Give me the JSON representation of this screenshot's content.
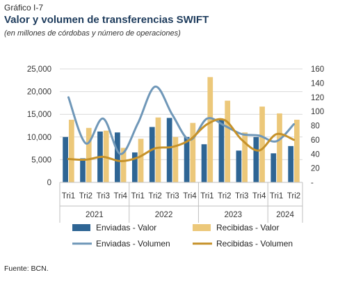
{
  "header": {
    "label": "Gráfico I-7",
    "title": "Valor y volumen de transferencias SWIFT",
    "subtitle": "(en millones de córdobas y número de operaciones)"
  },
  "footer": {
    "source": "Fuente: BCN."
  },
  "colors": {
    "enviadas_valor": "#2e6594",
    "recibidas_valor": "#ecc87a",
    "enviadas_volumen": "#6f97b8",
    "recibidas_volumen": "#c6922a",
    "grid": "#d9d9d9",
    "axis_text": "#333333"
  },
  "chart_data": {
    "type": "bar",
    "combo": "bar-line",
    "categories": [
      "Tri1",
      "Tri2",
      "Tri3",
      "Tri4",
      "Tri1",
      "Tri2",
      "Tri3",
      "Tri4",
      "Tri1",
      "Tri2",
      "Tri3",
      "Tri4",
      "Tri1",
      "Tri2"
    ],
    "groups": [
      {
        "label": "2021",
        "span": 4
      },
      {
        "label": "2022",
        "span": 4
      },
      {
        "label": "2023",
        "span": 4
      },
      {
        "label": "2024",
        "span": 2
      }
    ],
    "y_left": {
      "min": 0,
      "max": 25000,
      "ticks": [
        "0",
        "5,000",
        "10,000",
        "15,000",
        "20,000",
        "25,000"
      ]
    },
    "y_right": {
      "min": 0,
      "max": 160,
      "ticks": [
        "-",
        "20",
        "40",
        "60",
        "80",
        "100",
        "120",
        "140",
        "160"
      ]
    },
    "series": [
      {
        "name": "Enviadas - Valor",
        "kind": "bar",
        "axis": "left",
        "values": [
          10000,
          5300,
          11200,
          11000,
          6600,
          12200,
          14200,
          10000,
          8400,
          14000,
          7000,
          10000,
          6400,
          8000
        ]
      },
      {
        "name": "Recibidas - Valor",
        "kind": "bar",
        "axis": "left",
        "values": [
          13800,
          12000,
          11400,
          7600,
          9600,
          14300,
          10000,
          13100,
          23200,
          18000,
          11000,
          16700,
          15200,
          13800
        ]
      },
      {
        "name": "Enviadas - Volumen",
        "kind": "line",
        "axis": "right",
        "values": [
          120,
          55,
          90,
          40,
          83,
          135,
          95,
          60,
          90,
          80,
          68,
          66,
          58,
          82
        ]
      },
      {
        "name": "Recibidas - Volumen",
        "kind": "line",
        "axis": "right",
        "values": [
          33,
          32,
          36,
          30,
          35,
          48,
          50,
          60,
          82,
          88,
          60,
          45,
          68,
          60
        ]
      }
    ],
    "legend": "bottom",
    "grid": true
  }
}
